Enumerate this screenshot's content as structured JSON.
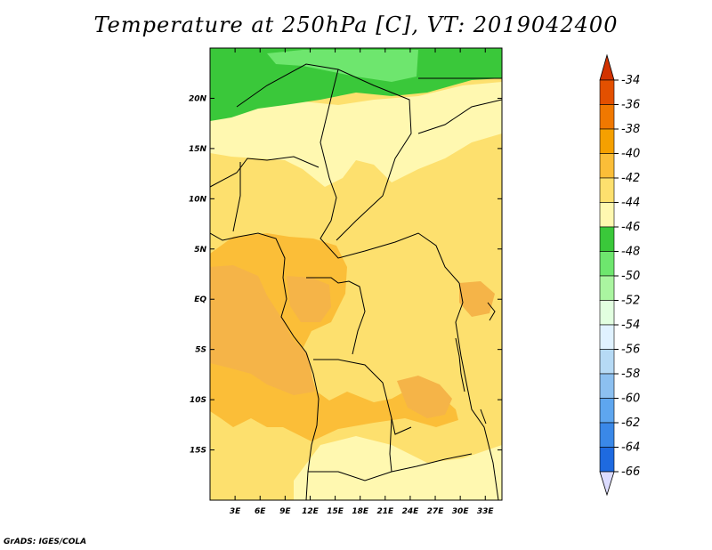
{
  "title": "Temperature at 250hPa [C], VT: 2019042400",
  "credit": "GrADS: IGES/COLA",
  "map": {
    "lon_range": [
      0,
      35
    ],
    "lat_range": [
      -20,
      25
    ],
    "lat_ticks": [
      {
        "value": 20,
        "label": "20N"
      },
      {
        "value": 15,
        "label": "15N"
      },
      {
        "value": 10,
        "label": "10N"
      },
      {
        "value": 5,
        "label": "5N"
      },
      {
        "value": 0,
        "label": "EQ"
      },
      {
        "value": -5,
        "label": "5S"
      },
      {
        "value": -10,
        "label": "10S"
      },
      {
        "value": -15,
        "label": "15S"
      }
    ],
    "lon_ticks": [
      {
        "value": 3,
        "label": "3E"
      },
      {
        "value": 6,
        "label": "6E"
      },
      {
        "value": 9,
        "label": "9E"
      },
      {
        "value": 12,
        "label": "12E"
      },
      {
        "value": 15,
        "label": "15E"
      },
      {
        "value": 18,
        "label": "18E"
      },
      {
        "value": 21,
        "label": "21E"
      },
      {
        "value": 24,
        "label": "24E"
      },
      {
        "value": 27,
        "label": "27E"
      },
      {
        "value": 30,
        "label": "30E"
      },
      {
        "value": 33,
        "label": "33E"
      }
    ]
  },
  "colorbar": {
    "levels": [
      {
        "label": "-34",
        "color": "#e35000"
      },
      {
        "label": "-36",
        "color": "#f07800"
      },
      {
        "label": "-38",
        "color": "#f5a000"
      },
      {
        "label": "-40",
        "color": "#fbbe38"
      },
      {
        "label": "-42",
        "color": "#fde06e"
      },
      {
        "label": "-44",
        "color": "#fff8b0"
      },
      {
        "label": "-46",
        "color": "#3ac83a"
      },
      {
        "label": "-48",
        "color": "#6ee66e"
      },
      {
        "label": "-50",
        "color": "#aaf5a0"
      },
      {
        "label": "-52",
        "color": "#e2ffe0"
      },
      {
        "label": "-54",
        "color": "#e0f2ff"
      },
      {
        "label": "-56",
        "color": "#b6daf5"
      },
      {
        "label": "-58",
        "color": "#8cc0f0"
      },
      {
        "label": "-60",
        "color": "#5ea6ef"
      },
      {
        "label": "-62",
        "color": "#3a88e8"
      },
      {
        "label": "-64",
        "color": "#1e6ae0"
      },
      {
        "label": "-66",
        "color": "#0a4ec6"
      }
    ],
    "top_color": "#d23200",
    "bottom_color": "#1a1a7a",
    "below_color": "#dcdcff"
  }
}
